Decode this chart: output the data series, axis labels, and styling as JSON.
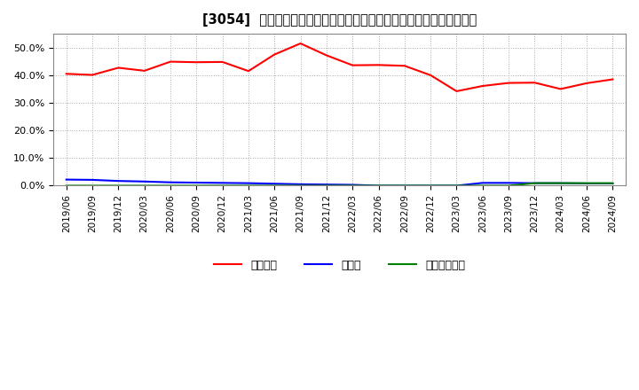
{
  "title": "[3054]  自己資本、のれん、繰延税金資産の総資産に対する比率の推移",
  "x_labels": [
    "2019/06",
    "2019/09",
    "2019/12",
    "2020/03",
    "2020/06",
    "2020/09",
    "2020/12",
    "2021/03",
    "2021/06",
    "2021/09",
    "2021/12",
    "2022/03",
    "2022/06",
    "2022/09",
    "2022/12",
    "2023/03",
    "2023/06",
    "2023/09",
    "2023/12",
    "2024/03",
    "2024/06",
    "2024/09"
  ],
  "equity": [
    40.5,
    40.1,
    42.7,
    41.6,
    44.9,
    44.7,
    44.8,
    41.5,
    47.5,
    51.5,
    47.2,
    43.6,
    43.7,
    43.4,
    40.0,
    34.2,
    36.1,
    37.2,
    37.3,
    35.0,
    37.1,
    38.5
  ],
  "goodwill": [
    2.2,
    2.1,
    1.7,
    1.5,
    1.2,
    1.1,
    1.0,
    0.9,
    0.7,
    0.5,
    0.4,
    0.3,
    0.0,
    0.0,
    0.0,
    0.0,
    1.0,
    1.0,
    0.9,
    0.9,
    0.8,
    0.8
  ],
  "deferred_tax": [
    0.0,
    0.0,
    0.0,
    0.0,
    0.0,
    0.0,
    0.0,
    0.0,
    0.0,
    0.0,
    0.0,
    0.0,
    0.0,
    0.0,
    0.0,
    0.0,
    0.0,
    0.0,
    0.9,
    0.9,
    0.9,
    0.9
  ],
  "equity_color": "#ff0000",
  "goodwill_color": "#0000ff",
  "deferred_tax_color": "#008000",
  "background_color": "#ffffff",
  "grid_color": "#aaaaaa",
  "ylim": [
    0.0,
    55.0
  ],
  "yticks": [
    0.0,
    10.0,
    20.0,
    30.0,
    40.0,
    50.0
  ],
  "legend_labels": [
    "自己資本",
    "のれん",
    "繰延税金資産"
  ],
  "figsize": [
    7.2,
    4.4
  ],
  "dpi": 100,
  "title_prefix": "[3054]  "
}
